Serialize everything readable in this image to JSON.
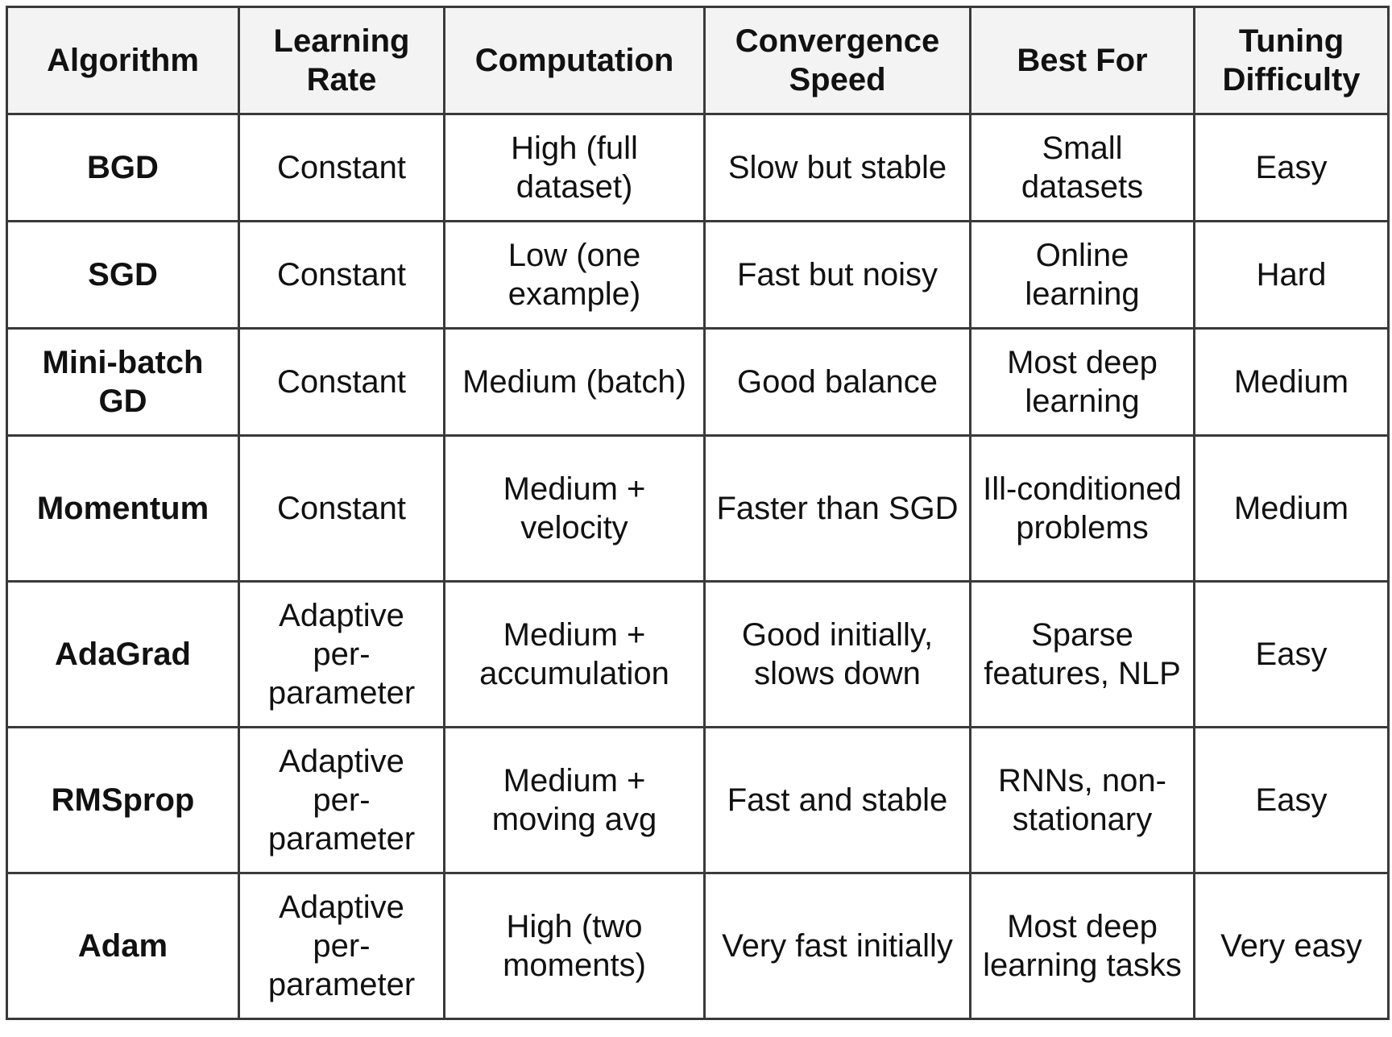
{
  "table": {
    "headers": [
      "Algorithm",
      "Learning Rate",
      "Computation",
      "Convergence Speed",
      "Best For",
      "Tuning Difficulty"
    ],
    "rows": [
      {
        "algorithm": "BGD",
        "learning_rate": "Constant",
        "computation": "High (full dataset)",
        "convergence_speed": "Slow but stable",
        "best_for": "Small datasets",
        "tuning_difficulty": "Easy"
      },
      {
        "algorithm": "SGD",
        "learning_rate": "Constant",
        "computation": "Low (one example)",
        "convergence_speed": "Fast but noisy",
        "best_for": "Online learning",
        "tuning_difficulty": "Hard"
      },
      {
        "algorithm": "Mini-batch GD",
        "learning_rate": "Constant",
        "computation": "Medium (batch)",
        "convergence_speed": "Good balance",
        "best_for": "Most deep learning",
        "tuning_difficulty": "Medium"
      },
      {
        "algorithm": "Momentum",
        "learning_rate": "Constant",
        "computation": "Medium + velocity",
        "convergence_speed": "Faster than SGD",
        "best_for": "Ill-conditioned problems",
        "tuning_difficulty": "Medium"
      },
      {
        "algorithm": "AdaGrad",
        "learning_rate": "Adaptive per-parameter",
        "computation": "Medium + accumulation",
        "convergence_speed": "Good initially, slows down",
        "best_for": "Sparse features, NLP",
        "tuning_difficulty": "Easy"
      },
      {
        "algorithm": "RMSprop",
        "learning_rate": "Adaptive per-parameter",
        "computation": "Medium + moving avg",
        "convergence_speed": "Fast and stable",
        "best_for": "RNNs, non-stationary",
        "tuning_difficulty": "Easy"
      },
      {
        "algorithm": "Adam",
        "learning_rate": "Adaptive per-parameter",
        "computation": "High (two moments)",
        "convergence_speed": "Very fast initially",
        "best_for": "Most deep learning tasks",
        "tuning_difficulty": "Very easy"
      }
    ]
  }
}
